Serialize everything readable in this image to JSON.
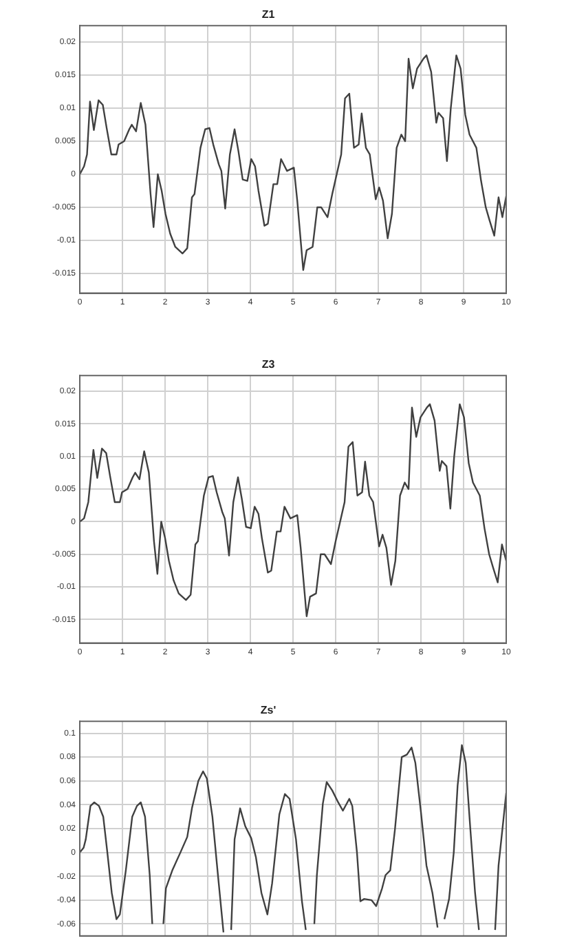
{
  "chart_data": [
    {
      "type": "line",
      "title": "Z1",
      "color": "#404040",
      "grid": true,
      "xlim": [
        0,
        10
      ],
      "xticks": [
        0,
        1,
        2,
        3,
        4,
        5,
        6,
        7,
        8,
        9,
        10
      ],
      "ylim": [
        -0.018,
        0.0225
      ],
      "yticks": [
        -0.015,
        -0.01,
        -0.005,
        0,
        0.005,
        0.01,
        0.015,
        0.02
      ],
      "x": [
        0,
        0.1,
        0.17,
        0.24,
        0.33,
        0.44,
        0.54,
        0.63,
        0.74,
        0.86,
        0.91,
        1.04,
        1.16,
        1.22,
        1.32,
        1.43,
        1.54,
        1.66,
        1.73,
        1.83,
        1.92,
        2.01,
        2.12,
        2.24,
        2.41,
        2.52,
        2.63,
        2.69,
        2.83,
        2.94,
        3.04,
        3.13,
        3.26,
        3.32,
        3.41,
        3.52,
        3.63,
        3.72,
        3.82,
        3.93,
        4.02,
        4.11,
        4.19,
        4.33,
        4.41,
        4.54,
        4.63,
        4.72,
        4.86,
        5.02,
        5.1,
        5.24,
        5.32,
        5.46,
        5.57,
        5.66,
        5.81,
        5.92,
        6.13,
        6.22,
        6.32,
        6.43,
        6.54,
        6.61,
        6.71,
        6.8,
        6.94,
        7.02,
        7.11,
        7.22,
        7.32,
        7.43,
        7.54,
        7.63,
        7.71,
        7.81,
        7.91,
        8.06,
        8.13,
        8.24,
        8.36,
        8.41,
        8.52,
        8.61,
        8.7,
        8.83,
        8.93,
        9.04,
        9.14,
        9.3,
        9.41,
        9.52,
        9.61,
        9.72,
        9.82,
        9.91,
        10
      ],
      "values": [
        0,
        0.0012,
        0.003,
        0.011,
        0.0067,
        0.0112,
        0.0105,
        0.007,
        0.003,
        0.003,
        0.0045,
        0.005,
        0.0068,
        0.0075,
        0.0065,
        0.0108,
        0.0075,
        -0.003,
        -0.008,
        0,
        -0.0025,
        -0.006,
        -0.009,
        -0.011,
        -0.012,
        -0.0112,
        -0.0035,
        -0.003,
        0.004,
        0.0068,
        0.007,
        0.0045,
        0.0015,
        0.0005,
        -0.0052,
        0.003,
        0.0068,
        0.0035,
        -0.0008,
        -0.001,
        0.0023,
        0.0012,
        -0.0025,
        -0.0078,
        -0.0075,
        -0.0015,
        -0.0015,
        0.0023,
        0.0005,
        0.001,
        -0.004,
        -0.0145,
        -0.0115,
        -0.011,
        -0.005,
        -0.005,
        -0.0065,
        -0.003,
        0.003,
        0.0115,
        0.0122,
        0.004,
        0.0045,
        0.0092,
        0.004,
        0.003,
        -0.0038,
        -0.002,
        -0.004,
        -0.0097,
        -0.006,
        0.004,
        0.006,
        0.005,
        0.0175,
        0.013,
        0.016,
        0.0175,
        0.018,
        0.0155,
        0.0078,
        0.0093,
        0.0085,
        0.002,
        0.01,
        0.018,
        0.016,
        0.009,
        0.006,
        0.004,
        -0.001,
        -0.005,
        -0.007,
        -0.0093,
        -0.0035,
        -0.0065,
        -0.0033
      ]
    },
    {
      "type": "line",
      "title": "Z3",
      "color": "#404040",
      "grid": true,
      "xlim": [
        0,
        10
      ],
      "xticks": [
        0,
        1,
        2,
        3,
        4,
        5,
        6,
        7,
        8,
        9,
        10
      ],
      "ylim": [
        -0.0186,
        0.0224
      ],
      "yticks": [
        -0.015,
        -0.01,
        -0.005,
        0,
        0.005,
        0.01,
        0.015,
        0.02
      ],
      "x": [
        0,
        0.1,
        0.2,
        0.32,
        0.41,
        0.52,
        0.62,
        0.71,
        0.82,
        0.94,
        0.99,
        1.12,
        1.24,
        1.3,
        1.4,
        1.51,
        1.62,
        1.74,
        1.82,
        1.91,
        2.0,
        2.09,
        2.2,
        2.32,
        2.49,
        2.6,
        2.71,
        2.77,
        2.91,
        3.02,
        3.12,
        3.21,
        3.34,
        3.4,
        3.5,
        3.6,
        3.71,
        3.8,
        3.9,
        4.01,
        4.1,
        4.19,
        4.27,
        4.41,
        4.49,
        4.62,
        4.71,
        4.8,
        4.94,
        5.1,
        5.18,
        5.32,
        5.4,
        5.54,
        5.65,
        5.74,
        5.89,
        6.0,
        6.21,
        6.3,
        6.4,
        6.51,
        6.62,
        6.69,
        6.79,
        6.88,
        7.02,
        7.1,
        7.19,
        7.3,
        7.4,
        7.51,
        7.62,
        7.71,
        7.79,
        7.89,
        7.99,
        8.14,
        8.21,
        8.32,
        8.44,
        8.49,
        8.6,
        8.69,
        8.78,
        8.91,
        9.01,
        9.12,
        9.22,
        9.38,
        9.49,
        9.6,
        9.69,
        9.8,
        9.9,
        10
      ],
      "values": [
        0,
        0.0005,
        0.003,
        0.011,
        0.0067,
        0.0112,
        0.0105,
        0.007,
        0.003,
        0.003,
        0.0045,
        0.005,
        0.0068,
        0.0075,
        0.0065,
        0.0108,
        0.0075,
        -0.003,
        -0.008,
        0,
        -0.0025,
        -0.006,
        -0.009,
        -0.011,
        -0.012,
        -0.0112,
        -0.0035,
        -0.003,
        0.004,
        0.0068,
        0.007,
        0.0045,
        0.0015,
        0.0005,
        -0.0052,
        0.003,
        0.0068,
        0.0035,
        -0.0008,
        -0.001,
        0.0023,
        0.0012,
        -0.0025,
        -0.0078,
        -0.0075,
        -0.0015,
        -0.0015,
        0.0023,
        0.0005,
        0.001,
        -0.004,
        -0.0145,
        -0.0115,
        -0.011,
        -0.005,
        -0.005,
        -0.0065,
        -0.003,
        0.003,
        0.0115,
        0.0122,
        0.004,
        0.0045,
        0.0092,
        0.004,
        0.003,
        -0.0038,
        -0.002,
        -0.004,
        -0.0097,
        -0.006,
        0.004,
        0.006,
        0.005,
        0.0175,
        0.013,
        0.016,
        0.0175,
        0.018,
        0.0155,
        0.0078,
        0.0093,
        0.0085,
        0.002,
        0.01,
        0.018,
        0.016,
        0.009,
        0.006,
        0.004,
        -0.001,
        -0.005,
        -0.007,
        -0.0093,
        -0.0035,
        -0.006
      ]
    },
    {
      "type": "line",
      "title": "Zs'",
      "color": "#404040",
      "grid": true,
      "tick_labels": "y",
      "xlim": [
        0,
        10
      ],
      "xticks": [
        0,
        1,
        2,
        3,
        4,
        5,
        6,
        7,
        8,
        9,
        10
      ],
      "ylim": [
        -0.07,
        0.11
      ],
      "yticks": [
        -0.06,
        -0.04,
        -0.02,
        0,
        0.02,
        0.04,
        0.06,
        0.08,
        0.1
      ],
      "x": [
        0,
        0.09,
        0.14,
        0.25,
        0.34,
        0.45,
        0.55,
        0.64,
        0.75,
        0.86,
        0.94,
        1.08,
        1.23,
        1.34,
        1.43,
        1.53,
        1.64,
        1.7,
        1.8,
        1.96,
        2.02,
        2.17,
        2.36,
        2.52,
        2.63,
        2.78,
        2.89,
        2.98,
        3.11,
        3.24,
        3.37,
        3.45,
        3.55,
        3.63,
        3.76,
        3.88,
        4.02,
        4.13,
        4.26,
        4.4,
        4.51,
        4.68,
        4.81,
        4.92,
        5.07,
        5.21,
        5.3,
        5.4,
        5.5,
        5.56,
        5.7,
        5.79,
        5.92,
        6.06,
        6.17,
        6.32,
        6.39,
        6.5,
        6.58,
        6.67,
        6.84,
        6.95,
        7.09,
        7.17,
        7.28,
        7.39,
        7.55,
        7.67,
        7.78,
        7.87,
        8.0,
        8.13,
        8.27,
        8.39,
        8.47,
        8.55,
        8.66,
        8.77,
        8.86,
        8.96,
        9.05,
        9.16,
        9.27,
        9.36,
        9.5,
        9.74,
        9.82,
        9.93,
        10
      ],
      "values": [
        0,
        0.004,
        0.011,
        0.039,
        0.042,
        0.039,
        0.03,
        0.002,
        -0.034,
        -0.056,
        -0.052,
        -0.015,
        0.03,
        0.039,
        0.042,
        0.03,
        -0.019,
        -0.06,
        null,
        -0.06,
        -0.03,
        -0.015,
        0,
        0.013,
        0.037,
        0.06,
        0.068,
        0.062,
        0.03,
        -0.019,
        -0.067,
        null,
        -0.065,
        0.011,
        0.037,
        0.022,
        0.012,
        -0.004,
        -0.034,
        -0.052,
        -0.026,
        0.032,
        0.049,
        0.045,
        0.011,
        -0.041,
        -0.065,
        null,
        -0.06,
        -0.019,
        0.041,
        0.059,
        0.052,
        0.042,
        0.035,
        0.045,
        0.039,
        0,
        -0.041,
        -0.039,
        -0.04,
        -0.045,
        -0.03,
        -0.019,
        -0.015,
        0.019,
        0.08,
        0.082,
        0.088,
        0.075,
        0.034,
        -0.011,
        -0.034,
        -0.063,
        null,
        -0.056,
        -0.039,
        0,
        0.056,
        0.09,
        0.075,
        0.019,
        -0.034,
        -0.065,
        null,
        -0.065,
        -0.011,
        0.026,
        0.05
      ]
    }
  ]
}
